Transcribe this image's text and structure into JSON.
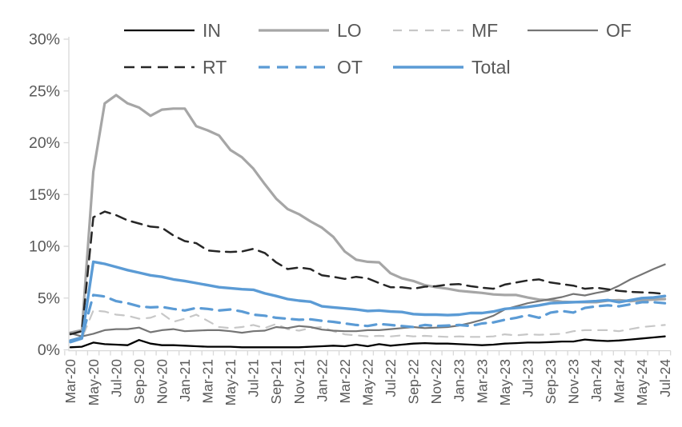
{
  "chart_data": {
    "type": "line",
    "title": "",
    "xlabel": "",
    "ylabel": "",
    "ylim": [
      0,
      30
    ],
    "grid": "off",
    "legend_position": "top",
    "label_color": "#595959",
    "axis_color": "#d9d9d9",
    "y_ticks": [
      {
        "value": 0,
        "label": "0%"
      },
      {
        "value": 5,
        "label": "5%"
      },
      {
        "value": 10,
        "label": "10%"
      },
      {
        "value": 15,
        "label": "15%"
      },
      {
        "value": 20,
        "label": "20%"
      },
      {
        "value": 25,
        "label": "25%"
      },
      {
        "value": 30,
        "label": "30%"
      }
    ],
    "categories": [
      "Mar-20",
      "Apr-20",
      "May-20",
      "Jun-20",
      "Jul-20",
      "Aug-20",
      "Sep-20",
      "Oct-20",
      "Nov-20",
      "Dec-20",
      "Jan-21",
      "Feb-21",
      "Mar-21",
      "Apr-21",
      "May-21",
      "Jun-21",
      "Jul-21",
      "Aug-21",
      "Sep-21",
      "Oct-21",
      "Nov-21",
      "Dec-21",
      "Jan-22",
      "Feb-22",
      "Mar-22",
      "Apr-22",
      "May-22",
      "Jun-22",
      "Jul-22",
      "Aug-22",
      "Sep-22",
      "Oct-22",
      "Nov-22",
      "Dec-22",
      "Jan-23",
      "Feb-23",
      "Mar-23",
      "Apr-23",
      "May-23",
      "Jun-23",
      "Jul-23",
      "Aug-23",
      "Sep-23",
      "Oct-23",
      "Nov-23",
      "Dec-23",
      "Jan-24",
      "Feb-24",
      "Mar-24",
      "Apr-24",
      "May-24",
      "Jun-24",
      "Jul-24"
    ],
    "x_tick_labels": [
      "Mar-20",
      "May-20",
      "Jul-20",
      "Sep-20",
      "Nov-20",
      "Jan-21",
      "Mar-21",
      "May-21",
      "Jul-21",
      "Sep-21",
      "Nov-21",
      "Jan-22",
      "Mar-22",
      "May-22",
      "Jul-22",
      "Sep-22",
      "Nov-22",
      "Jan-23",
      "Mar-23",
      "May-23",
      "Jul-23",
      "Sep-23",
      "Nov-23",
      "Jan-24",
      "Mar-24",
      "May-24",
      "Jul-24"
    ],
    "legend_rows": [
      [
        "IN",
        "LO",
        "MF",
        "OF"
      ],
      [
        "RT",
        "OT",
        "Total"
      ]
    ],
    "series": [
      {
        "name": "IN",
        "color": "#000000",
        "style": "solid",
        "width": 2.3,
        "values": [
          0.25,
          0.3,
          0.7,
          0.55,
          0.5,
          0.45,
          0.95,
          0.6,
          0.45,
          0.45,
          0.4,
          0.35,
          0.3,
          0.3,
          0.3,
          0.25,
          0.25,
          0.25,
          0.25,
          0.25,
          0.25,
          0.3,
          0.35,
          0.4,
          0.35,
          0.5,
          0.35,
          0.55,
          0.4,
          0.5,
          0.6,
          0.65,
          0.6,
          0.6,
          0.55,
          0.5,
          0.45,
          0.5,
          0.6,
          0.65,
          0.7,
          0.7,
          0.75,
          0.8,
          0.8,
          1.0,
          0.9,
          0.85,
          0.9,
          1.0,
          1.1,
          1.2,
          1.3
        ]
      },
      {
        "name": "LO",
        "color": "#a6a6a6",
        "style": "solid",
        "width": 3.2,
        "values": [
          1.65,
          1.9,
          17.2,
          23.8,
          24.6,
          23.8,
          23.4,
          22.6,
          23.2,
          23.3,
          23.3,
          21.6,
          21.2,
          20.7,
          19.3,
          18.6,
          17.5,
          16.0,
          14.6,
          13.6,
          13.1,
          12.4,
          11.8,
          10.9,
          9.5,
          8.7,
          8.5,
          8.45,
          7.4,
          6.9,
          6.65,
          6.25,
          6.05,
          5.9,
          5.7,
          5.6,
          5.5,
          5.35,
          5.3,
          5.3,
          5.05,
          4.85,
          4.8,
          4.65,
          4.6,
          4.6,
          4.6,
          4.75,
          4.8,
          4.7,
          4.8,
          4.85,
          4.9
        ]
      },
      {
        "name": "MF",
        "color": "#c7c7c7",
        "style": "dashed",
        "width": 2.2,
        "dash": "11 9",
        "values": [
          0.95,
          1.1,
          3.8,
          3.7,
          3.4,
          3.3,
          3.0,
          3.1,
          3.5,
          2.7,
          3.0,
          3.4,
          2.8,
          2.2,
          2.1,
          2.2,
          2.4,
          2.1,
          2.5,
          2.0,
          1.85,
          2.1,
          2.2,
          1.8,
          1.5,
          1.4,
          1.3,
          1.35,
          1.3,
          1.4,
          1.3,
          1.35,
          1.3,
          1.25,
          1.3,
          1.25,
          1.25,
          1.3,
          1.5,
          1.4,
          1.5,
          1.45,
          1.5,
          1.55,
          1.8,
          1.9,
          1.9,
          1.9,
          1.8,
          2.0,
          2.2,
          2.3,
          2.4
        ]
      },
      {
        "name": "OF",
        "color": "#757575",
        "style": "solid",
        "width": 2.2,
        "values": [
          1.6,
          1.3,
          1.55,
          1.9,
          2.0,
          2.0,
          2.15,
          1.7,
          1.9,
          2.0,
          1.8,
          1.85,
          1.9,
          1.9,
          1.8,
          1.65,
          1.8,
          1.85,
          2.2,
          2.1,
          2.3,
          2.2,
          1.95,
          1.85,
          1.8,
          1.8,
          1.9,
          1.9,
          2.0,
          2.1,
          2.2,
          2.1,
          2.15,
          2.2,
          2.35,
          2.6,
          2.9,
          3.3,
          3.9,
          4.2,
          4.5,
          4.7,
          4.9,
          5.1,
          5.4,
          5.25,
          5.5,
          5.7,
          6.2,
          6.8,
          7.3,
          7.8,
          8.25
        ]
      },
      {
        "name": "RT",
        "color": "#262626",
        "style": "dashed",
        "width": 2.5,
        "dash": "13 8",
        "values": [
          1.5,
          1.8,
          12.8,
          13.35,
          13.0,
          12.5,
          12.2,
          11.9,
          11.8,
          11.05,
          10.5,
          10.3,
          9.6,
          9.5,
          9.45,
          9.5,
          9.75,
          9.35,
          8.45,
          7.8,
          7.95,
          7.8,
          7.2,
          7.05,
          6.85,
          7.05,
          6.9,
          6.45,
          6.05,
          6.05,
          5.9,
          6.1,
          6.15,
          6.3,
          6.35,
          6.15,
          6.0,
          5.9,
          6.3,
          6.5,
          6.7,
          6.8,
          6.5,
          6.35,
          6.2,
          5.9,
          6.0,
          5.85,
          5.7,
          5.6,
          5.55,
          5.5,
          5.4
        ]
      },
      {
        "name": "OT",
        "color": "#5b9bd5",
        "style": "dashed",
        "width": 3.2,
        "dash": "14 9",
        "values": [
          0.9,
          1.2,
          5.3,
          5.15,
          4.7,
          4.5,
          4.2,
          4.1,
          4.15,
          3.95,
          3.8,
          4.05,
          3.95,
          3.8,
          3.9,
          3.7,
          3.4,
          3.3,
          3.1,
          3.0,
          2.9,
          2.95,
          2.8,
          2.7,
          2.55,
          2.4,
          2.3,
          2.5,
          2.4,
          2.3,
          2.2,
          2.4,
          2.3,
          2.35,
          2.4,
          2.3,
          2.55,
          2.65,
          2.9,
          3.1,
          3.35,
          3.1,
          3.6,
          3.75,
          3.6,
          4.05,
          4.2,
          4.3,
          4.2,
          4.4,
          4.6,
          4.6,
          4.5
        ]
      },
      {
        "name": "Total",
        "color": "#5b9bd5",
        "style": "solid",
        "width": 3.4,
        "values": [
          0.75,
          1.1,
          8.5,
          8.3,
          8.0,
          7.7,
          7.45,
          7.2,
          7.05,
          6.8,
          6.65,
          6.45,
          6.25,
          6.05,
          5.95,
          5.85,
          5.8,
          5.45,
          5.2,
          4.9,
          4.75,
          4.65,
          4.2,
          4.1,
          4.0,
          3.9,
          3.75,
          3.8,
          3.7,
          3.65,
          3.45,
          3.4,
          3.4,
          3.35,
          3.4,
          3.55,
          3.55,
          3.7,
          3.95,
          4.05,
          4.15,
          4.3,
          4.5,
          4.55,
          4.6,
          4.65,
          4.7,
          4.8,
          4.6,
          4.8,
          5.0,
          5.05,
          5.2
        ]
      }
    ]
  }
}
